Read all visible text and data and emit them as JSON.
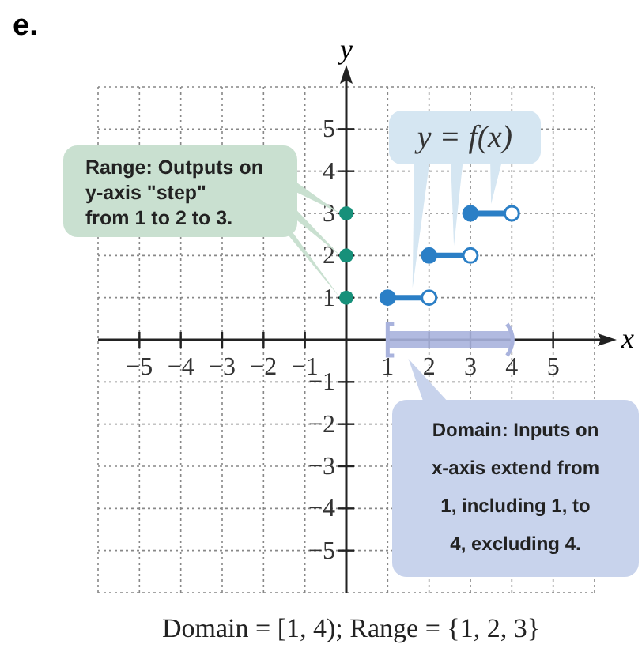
{
  "chart_data": {
    "type": "line",
    "title": "e.",
    "xlabel": "x",
    "ylabel": "y",
    "xlim": [
      -6,
      6
    ],
    "ylim": [
      -6,
      6
    ],
    "xticks": [
      -5,
      -4,
      -3,
      -2,
      -1,
      1,
      2,
      3,
      4,
      5
    ],
    "yticks": [
      -5,
      -4,
      -3,
      -2,
      -1,
      1,
      2,
      3,
      4,
      5
    ],
    "grid": true,
    "marker": "circle",
    "line_style": "solid",
    "series": [
      {
        "color": "#a9b3dd",
        "x": [
          1,
          4
        ],
        "values": [
          0,
          0
        ],
        "marker": "none"
      },
      {
        "color": "#2b7fc6",
        "x": [
          1,
          2
        ],
        "values": [
          1,
          1
        ]
      },
      {
        "color": "#2b7fc6",
        "x": [
          2,
          3
        ],
        "values": [
          2,
          2
        ]
      },
      {
        "color": "#2b7fc6",
        "x": [
          3,
          4
        ],
        "values": [
          3,
          3
        ]
      },
      {
        "type": "scatter",
        "color": "#17907a",
        "x": [
          0,
          0,
          0
        ],
        "values": [
          1,
          2,
          3
        ]
      }
    ],
    "annotations": [
      "Range: Outputs on y-axis \"step\" from 1 to 2 to 3.",
      "y = f(x)",
      "Domain: Inputs on x-axis extend from 1, including 1, to 4, excluding 4.",
      "Domain = [1, 4); Range = {1, 2, 3}"
    ]
  }
}
